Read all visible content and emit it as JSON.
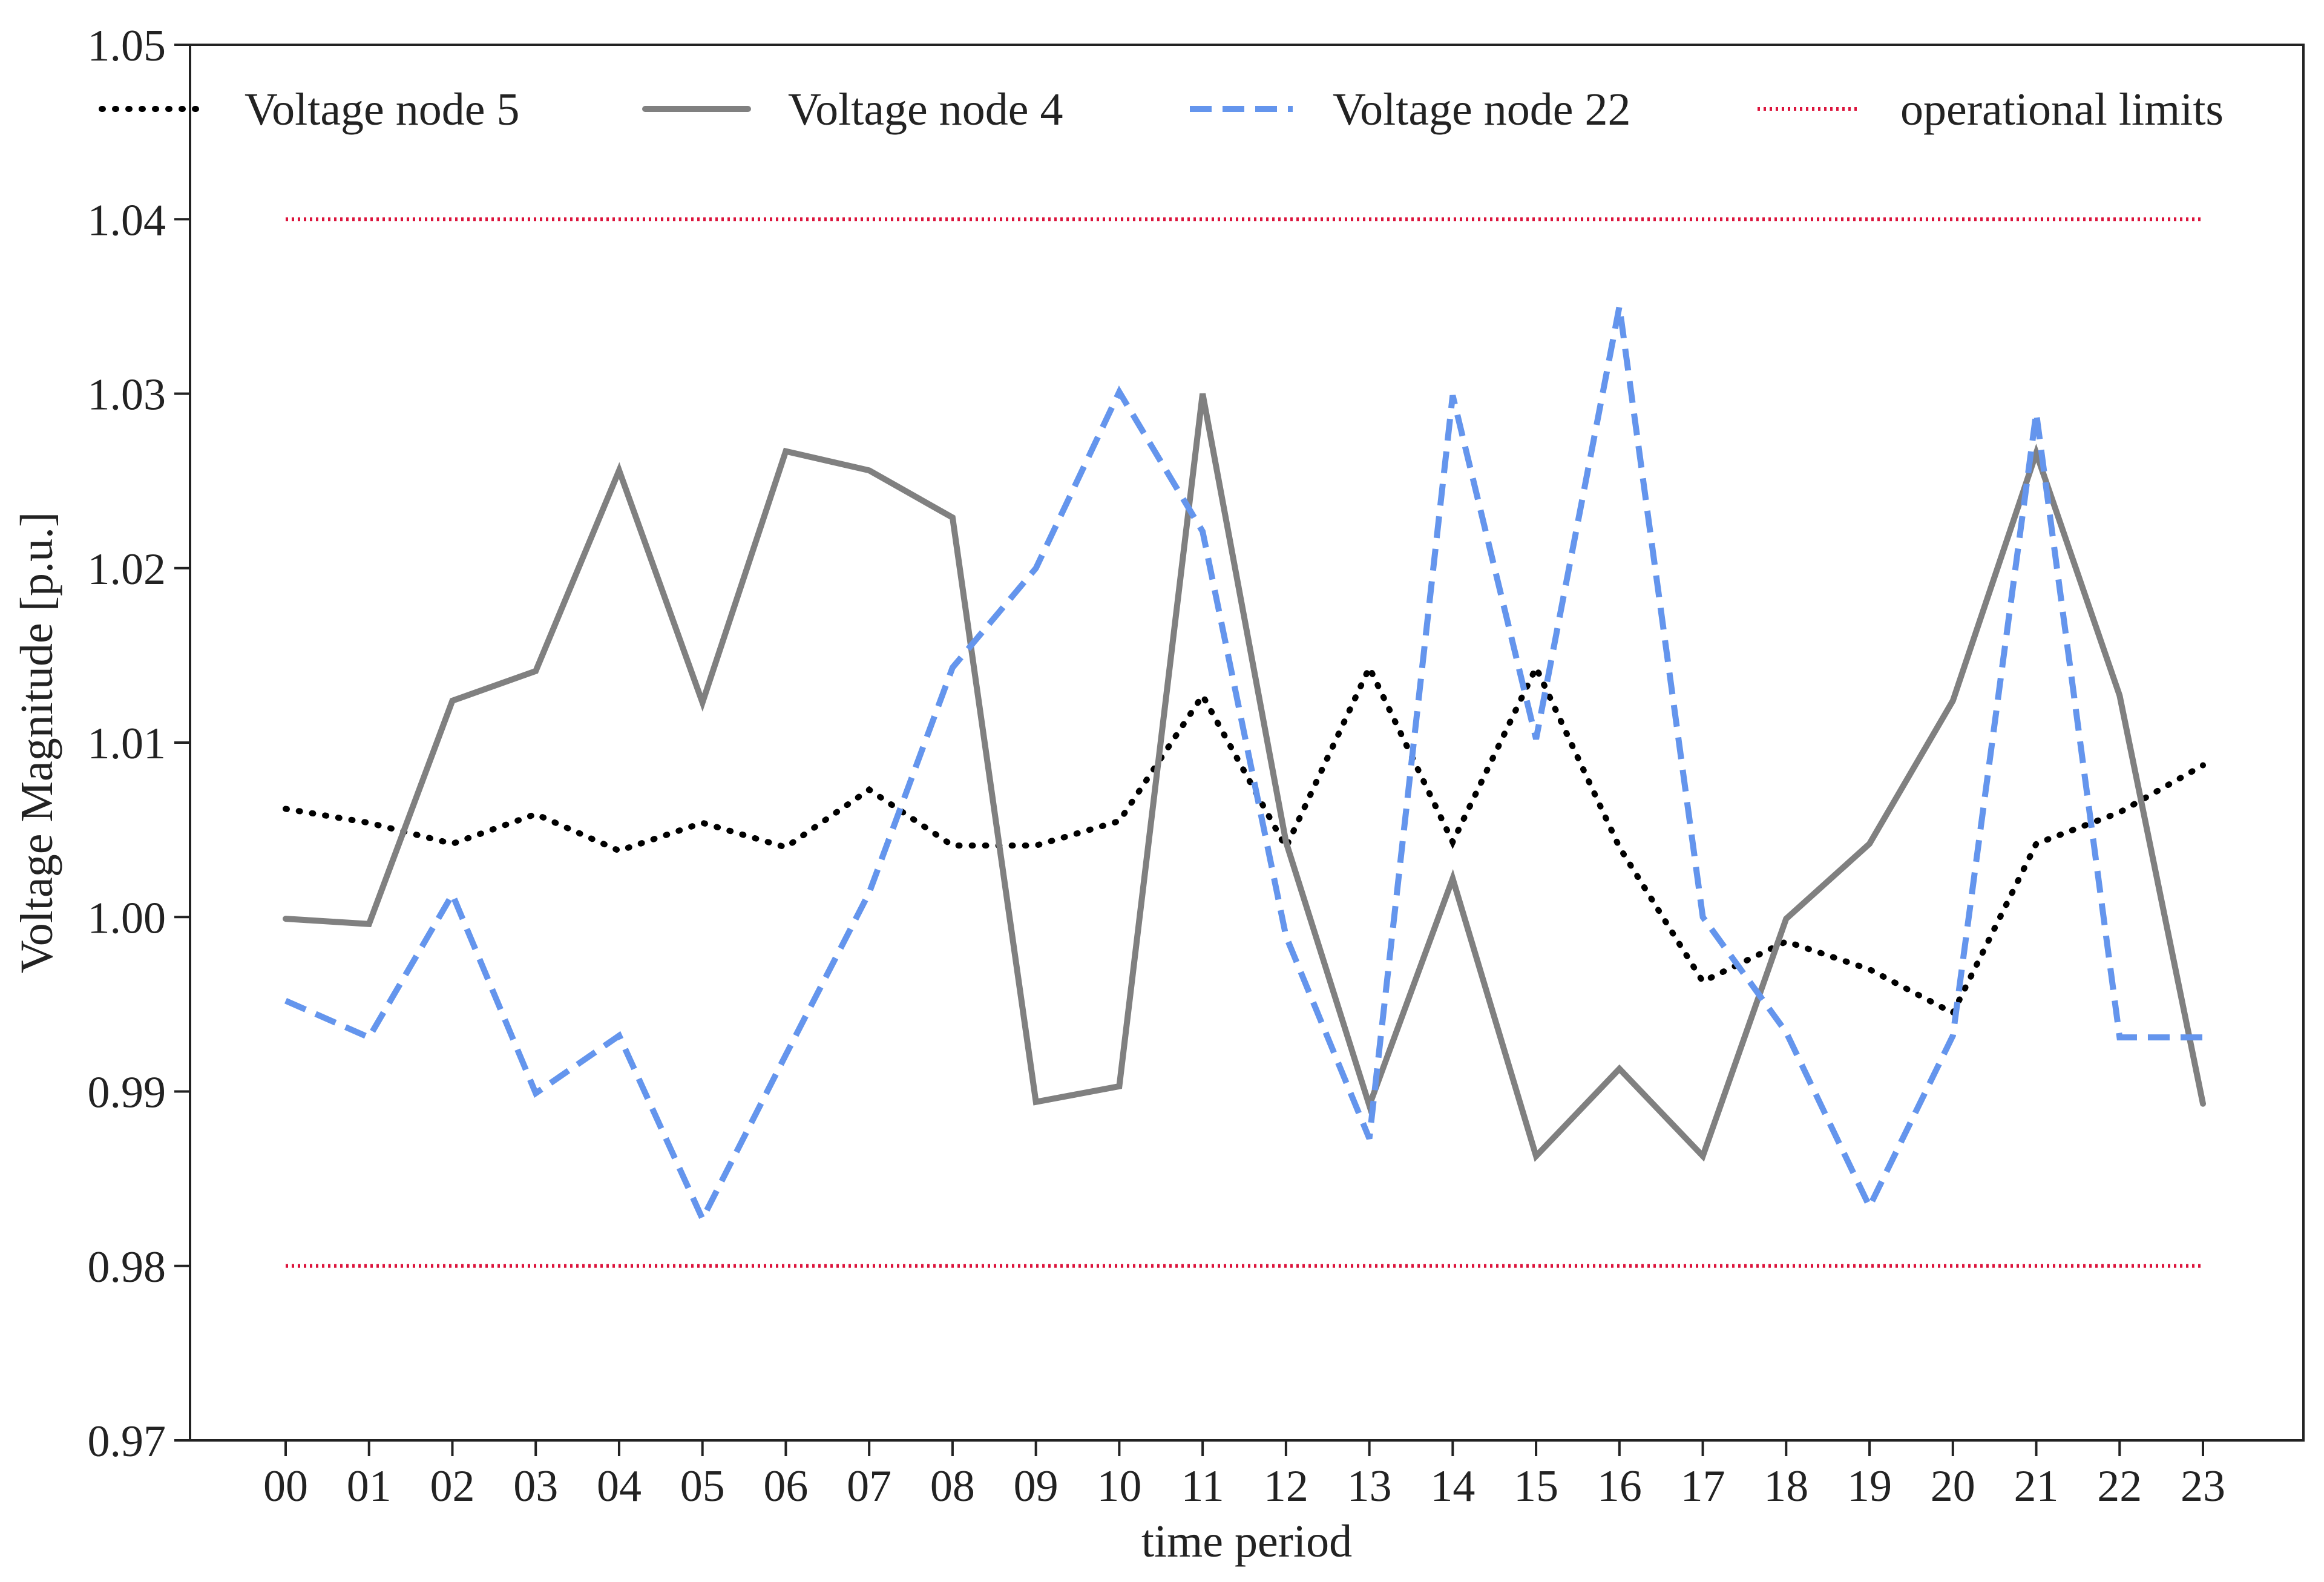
{
  "chart_data": {
    "type": "line",
    "title": "",
    "xlabel": "time period",
    "ylabel": "Voltage Magnitude [p.u.]",
    "ylim": [
      0.97,
      1.05
    ],
    "yticks": [
      "0.97",
      "0.98",
      "0.99",
      "1.00",
      "1.01",
      "1.02",
      "1.03",
      "1.04",
      "1.05"
    ],
    "categories": [
      "00",
      "01",
      "02",
      "03",
      "04",
      "05",
      "06",
      "07",
      "08",
      "09",
      "10",
      "11",
      "12",
      "13",
      "14",
      "15",
      "16",
      "17",
      "18",
      "19",
      "20",
      "21",
      "22",
      "23"
    ],
    "grid": false,
    "legend_position": "top",
    "series": [
      {
        "name": "Voltage node 5",
        "color": "#000000",
        "style": "dotted",
        "values": [
          1.0062,
          1.0054,
          1.0042,
          1.0059,
          1.0038,
          1.0054,
          1.004,
          1.0073,
          1.0041,
          1.0041,
          1.0055,
          1.0127,
          1.004,
          1.0143,
          1.0043,
          1.0143,
          1.004,
          0.9963,
          0.9986,
          0.997,
          0.9945,
          1.0042,
          1.006,
          1.0087
        ]
      },
      {
        "name": "Voltage node 4",
        "color": "#808080",
        "style": "solid",
        "values": [
          0.9999,
          0.9996,
          1.0124,
          1.0141,
          1.0256,
          1.0123,
          1.0267,
          1.0256,
          1.0229,
          0.9894,
          0.9903,
          1.03,
          1.0043,
          0.9892,
          1.0022,
          0.9863,
          0.9913,
          0.9863,
          0.9999,
          1.0042,
          1.0124,
          1.0266,
          1.0127,
          0.9893
        ]
      },
      {
        "name": "Voltage node 22",
        "color": "#6495ED",
        "style": "dashed",
        "values": [
          0.9952,
          0.9931,
          1.0013,
          0.9899,
          0.9932,
          0.9827,
          0.9921,
          1.0014,
          1.0143,
          1.02,
          1.0301,
          1.0221,
          0.9989,
          0.9873,
          1.0299,
          1.0102,
          1.035,
          1.0,
          0.9934,
          0.9834,
          0.9932,
          1.0289,
          0.9931,
          0.9931
        ]
      },
      {
        "name": "operational limits",
        "color": "#DC143C",
        "style": "dotted-fine",
        "limits": [
          0.98,
          1.04
        ]
      }
    ]
  }
}
